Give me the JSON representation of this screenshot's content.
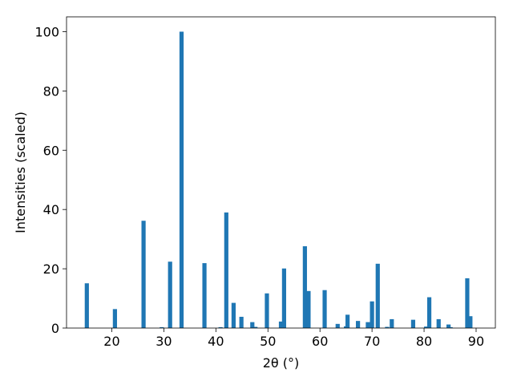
{
  "chart_data": {
    "type": "bar",
    "xlabel": "2θ (°)",
    "ylabel": "Intensities (scaled)",
    "xlim": [
      11.3,
      93.7
    ],
    "ylim": [
      0,
      105
    ],
    "xticks": [
      20,
      30,
      40,
      50,
      60,
      70,
      80,
      90
    ],
    "yticks": [
      0,
      20,
      40,
      60,
      80,
      100
    ],
    "bar_width": 0.8,
    "color": "#1f77b4",
    "grid": false,
    "x": [
      15.2,
      20.6,
      26.1,
      29.6,
      31.2,
      33.4,
      37.8,
      40.9,
      42.0,
      43.4,
      44.9,
      47.0,
      47.6,
      49.8,
      52.5,
      53.1,
      57.1,
      57.8,
      60.9,
      63.4,
      65.0,
      65.3,
      67.3,
      69.2,
      70.0,
      71.1,
      72.9,
      73.8,
      77.9,
      80.4,
      81.0,
      82.8,
      84.7,
      85.1,
      88.3,
      88.9
    ],
    "values": [
      15.1,
      6.4,
      36.2,
      0.3,
      22.4,
      100.0,
      21.9,
      0.3,
      39.0,
      8.5,
      3.8,
      2.0,
      0.4,
      11.7,
      2.2,
      20.1,
      27.6,
      12.5,
      12.8,
      1.4,
      0.6,
      4.5,
      2.4,
      2.0,
      9.0,
      21.7,
      0.4,
      3.0,
      2.8,
      0.5,
      10.4,
      3.0,
      1.2,
      0.3,
      16.8,
      4.0
    ]
  }
}
